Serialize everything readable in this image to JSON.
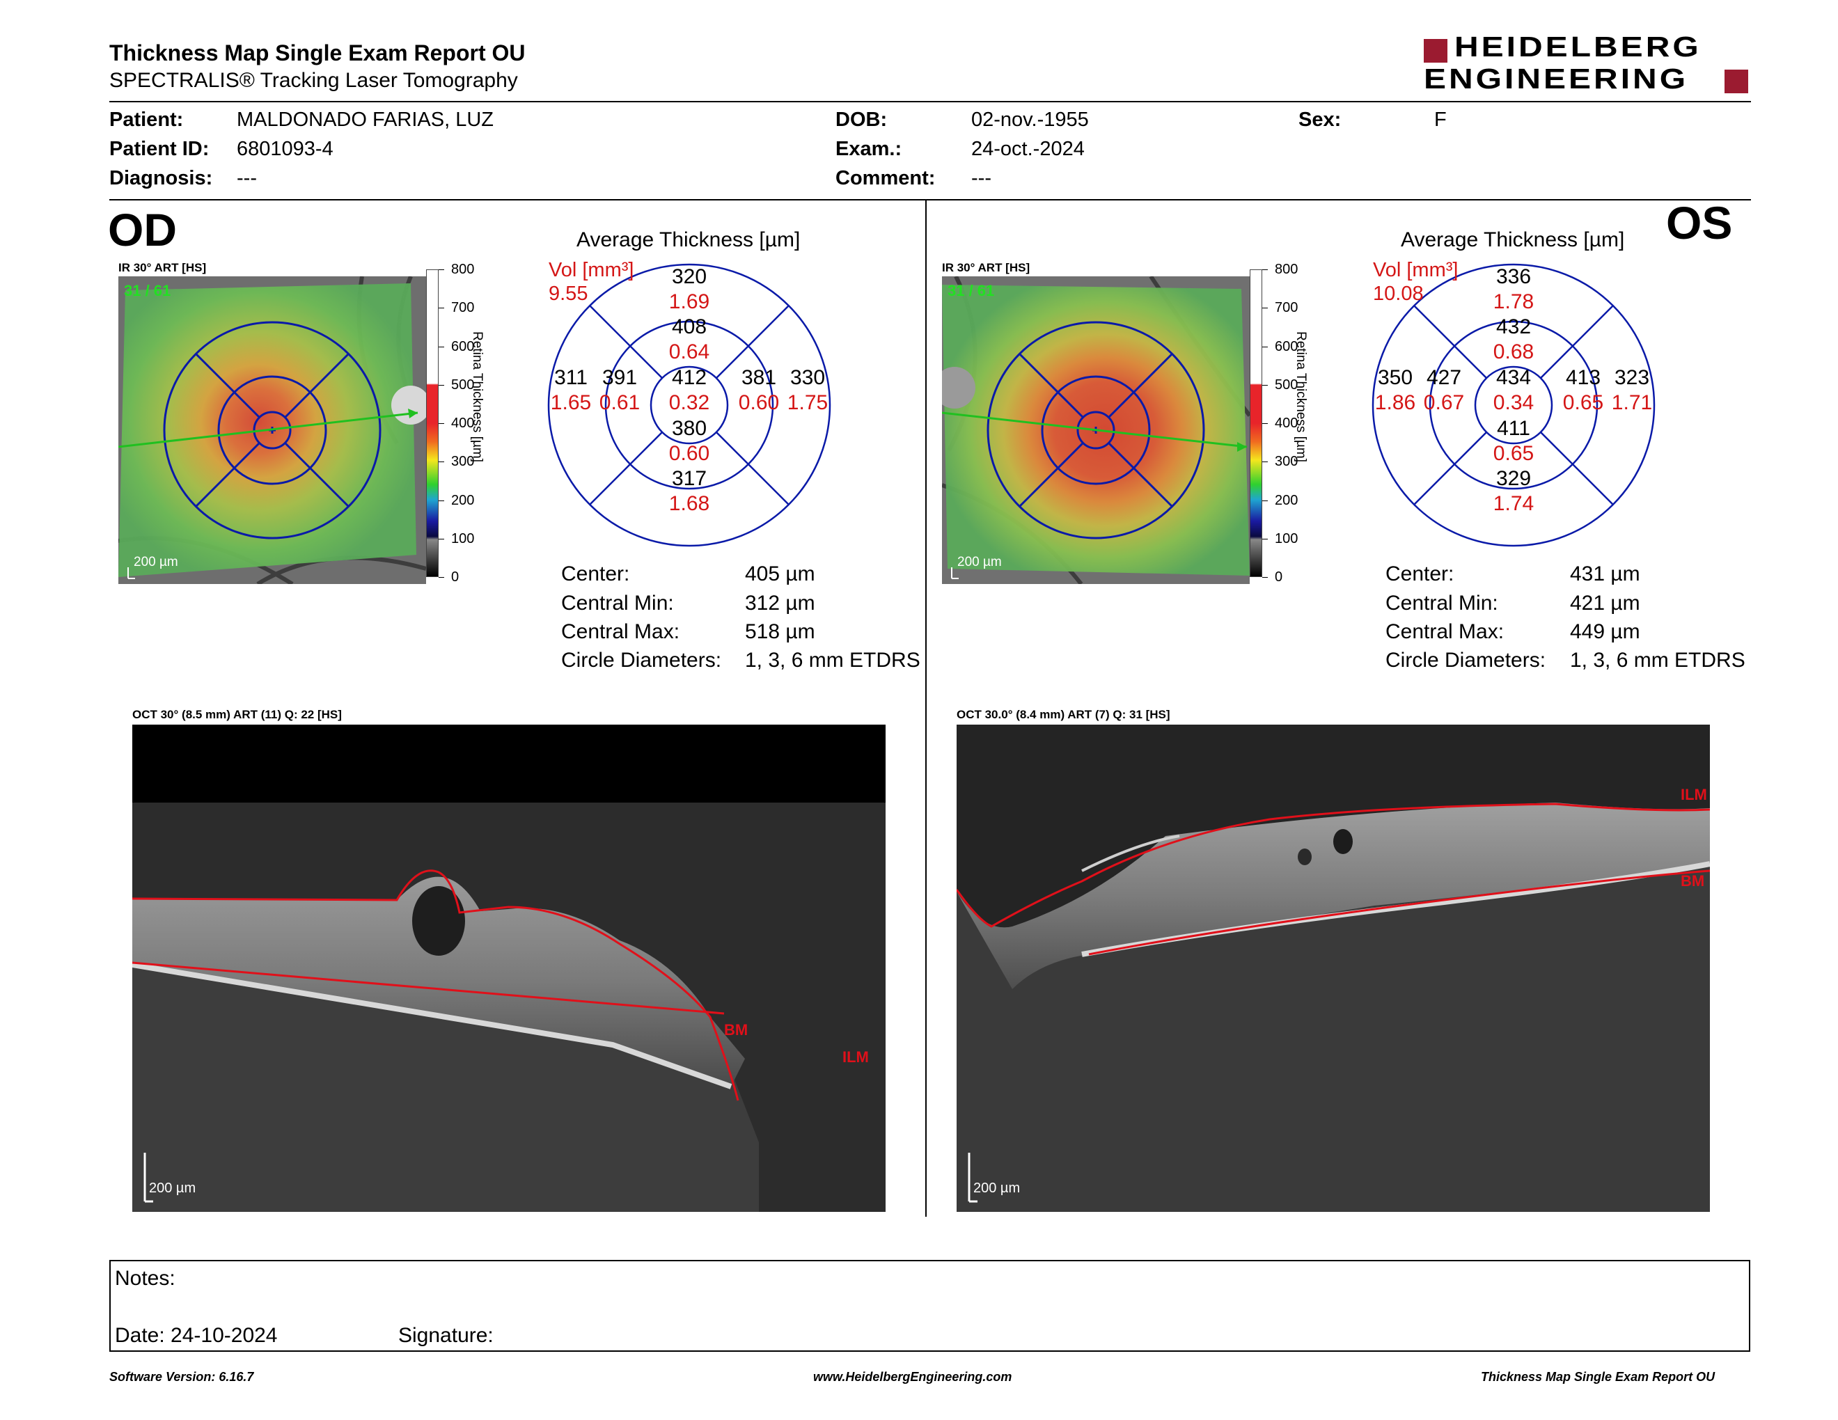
{
  "header": {
    "title": "Thickness Map Single Exam Report OU",
    "subtitle": "SPECTRALIS® Tracking Laser Tomography",
    "logo_line1": "HEIDELBERG",
    "logo_line2": "ENGINEERING"
  },
  "patient": {
    "patient_label": "Patient:",
    "patient_value": "MALDONADO FARIAS, LUZ",
    "id_label": "Patient ID:",
    "id_value": "6801093-4",
    "diagnosis_label": "Diagnosis:",
    "diagnosis_value": "---",
    "dob_label": "DOB:",
    "dob_value": "02-nov.-1955",
    "exam_label": "Exam.:",
    "exam_value": "24-oct.-2024",
    "comment_label": "Comment:",
    "comment_value": "---",
    "sex_label": "Sex:",
    "sex_value": "F"
  },
  "colors": {
    "brand": "#9b1b30",
    "grid_blue": "#0a1aa8",
    "red_text": "#d41616",
    "segmentation": "#e0101a"
  },
  "colorbar": {
    "ticks": [
      "800",
      "700",
      "600",
      "500",
      "400",
      "300",
      "200",
      "100",
      "0"
    ],
    "axis_label": "Retina Thickness [µm]"
  },
  "od": {
    "eye_label": "OD",
    "ir_caption": "IR 30° ART [HS]",
    "frame": "31 / 61",
    "scale": "200 µm",
    "grid_title": "Average Thickness [µm]",
    "vol_label": "Vol [mm³]",
    "vol_value": "9.55",
    "sectors": {
      "outer_sup": {
        "t": "320",
        "v": "1.69"
      },
      "inner_sup": {
        "t": "408",
        "v": "0.64"
      },
      "outer_left": {
        "t": "311",
        "v": "1.65"
      },
      "inner_left": {
        "t": "391",
        "v": "0.61"
      },
      "center": {
        "t": "412",
        "v": "0.32"
      },
      "inner_right": {
        "t": "381",
        "v": "0.60"
      },
      "outer_right": {
        "t": "330",
        "v": "1.75"
      },
      "inner_inf": {
        "t": "380",
        "v": "0.60"
      },
      "outer_inf": {
        "t": "317",
        "v": "1.68"
      }
    },
    "stats": {
      "center_label": "Center:",
      "center_value": "405 µm",
      "min_label": "Central Min:",
      "min_value": "312 µm",
      "max_label": "Central Max:",
      "max_value": "518 µm",
      "diam_label": "Circle Diameters:",
      "diam_value": "1, 3, 6 mm ETDRS"
    },
    "oct_caption": "OCT 30° (8.5 mm) ART (11) Q: 22 [HS]",
    "oct_scale": "200 µm",
    "bm_label": "BM",
    "ilm_label": "ILM"
  },
  "os": {
    "eye_label": "OS",
    "ir_caption": "IR 30° ART [HS]",
    "frame": "31 / 61",
    "scale": "200 µm",
    "grid_title": "Average Thickness [µm]",
    "vol_label": "Vol [mm³]",
    "vol_value": "10.08",
    "sectors": {
      "outer_sup": {
        "t": "336",
        "v": "1.78"
      },
      "inner_sup": {
        "t": "432",
        "v": "0.68"
      },
      "outer_left": {
        "t": "350",
        "v": "1.86"
      },
      "inner_left": {
        "t": "427",
        "v": "0.67"
      },
      "center": {
        "t": "434",
        "v": "0.34"
      },
      "inner_right": {
        "t": "413",
        "v": "0.65"
      },
      "outer_right": {
        "t": "323",
        "v": "1.71"
      },
      "inner_inf": {
        "t": "411",
        "v": "0.65"
      },
      "outer_inf": {
        "t": "329",
        "v": "1.74"
      }
    },
    "stats": {
      "center_label": "Center:",
      "center_value": "431 µm",
      "min_label": "Central Min:",
      "min_value": "421 µm",
      "max_label": "Central Max:",
      "max_value": "449 µm",
      "diam_label": "Circle Diameters:",
      "diam_value": "1, 3, 6 mm ETDRS"
    },
    "oct_caption": "OCT 30.0° (8.4 mm) ART (7) Q: 31 [HS]",
    "oct_scale": "200 µm",
    "bm_label": "BM",
    "ilm_label": "ILM"
  },
  "notes": {
    "notes_label": "Notes:",
    "date_label": "Date: 24-10-2024",
    "signature_label": "Signature:"
  },
  "footer": {
    "version": "Software Version: 6.16.7",
    "website": "www.HeidelbergEngineering.com",
    "report_name": "Thickness Map Single Exam Report OU"
  }
}
